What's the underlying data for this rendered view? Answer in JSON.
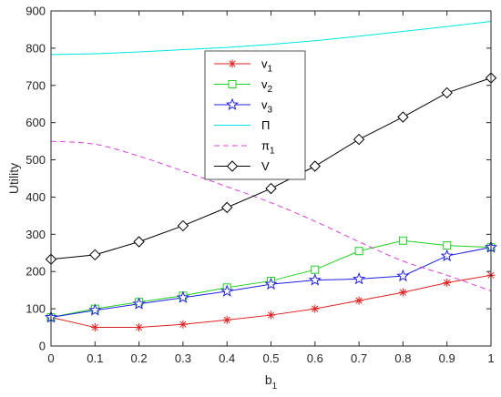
{
  "chart_data": {
    "type": "line",
    "title": "",
    "xlabel": "b",
    "xlabel_sub": "1",
    "ylabel": "Utility",
    "xlim": [
      0,
      1
    ],
    "ylim": [
      0,
      900
    ],
    "xticks": [
      "0",
      "0.1",
      "0.2",
      "0.3",
      "0.4",
      "0.5",
      "0.6",
      "0.7",
      "0.8",
      "0.9",
      "1"
    ],
    "yticks": [
      "0",
      "100",
      "200",
      "300",
      "400",
      "500",
      "600",
      "700",
      "800",
      "900"
    ],
    "grid": false,
    "legend_position": "upper-center",
    "x": [
      0,
      0.1,
      0.2,
      0.3,
      0.4,
      0.5,
      0.6,
      0.7,
      0.8,
      0.9,
      1.0
    ],
    "series": [
      {
        "name": "v",
        "name_sub": "1",
        "color": "#e02020",
        "marker": "asterisk",
        "dash": "solid",
        "values": [
          77,
          50,
          50,
          58,
          70,
          83,
          100,
          122,
          144,
          170,
          190
        ]
      },
      {
        "name": "v",
        "name_sub": "2",
        "color": "#20d020",
        "marker": "square",
        "dash": "solid",
        "values": [
          77,
          100,
          118,
          135,
          157,
          175,
          205,
          255,
          283,
          270,
          265
        ]
      },
      {
        "name": "v",
        "name_sub": "3",
        "color": "#2020e0",
        "marker": "star",
        "dash": "solid",
        "values": [
          77,
          96,
          113,
          130,
          147,
          166,
          177,
          180,
          188,
          242,
          265
        ]
      },
      {
        "name": "Π",
        "name_sub": "",
        "color": "#00e5e5",
        "marker": "none",
        "dash": "solid",
        "values": [
          783,
          785,
          790,
          796,
          802,
          810,
          820,
          832,
          845,
          858,
          872
        ]
      },
      {
        "name": "π",
        "name_sub": "1",
        "color": "#e040e0",
        "marker": "none",
        "dash": "dashed",
        "values": [
          550,
          542,
          510,
          470,
          428,
          385,
          335,
          280,
          228,
          190,
          148
        ]
      },
      {
        "name": "V",
        "name_sub": "",
        "color": "#000000",
        "marker": "diamond",
        "dash": "solid",
        "values": [
          233,
          245,
          280,
          323,
          372,
          423,
          483,
          555,
          615,
          680,
          720
        ]
      }
    ]
  }
}
